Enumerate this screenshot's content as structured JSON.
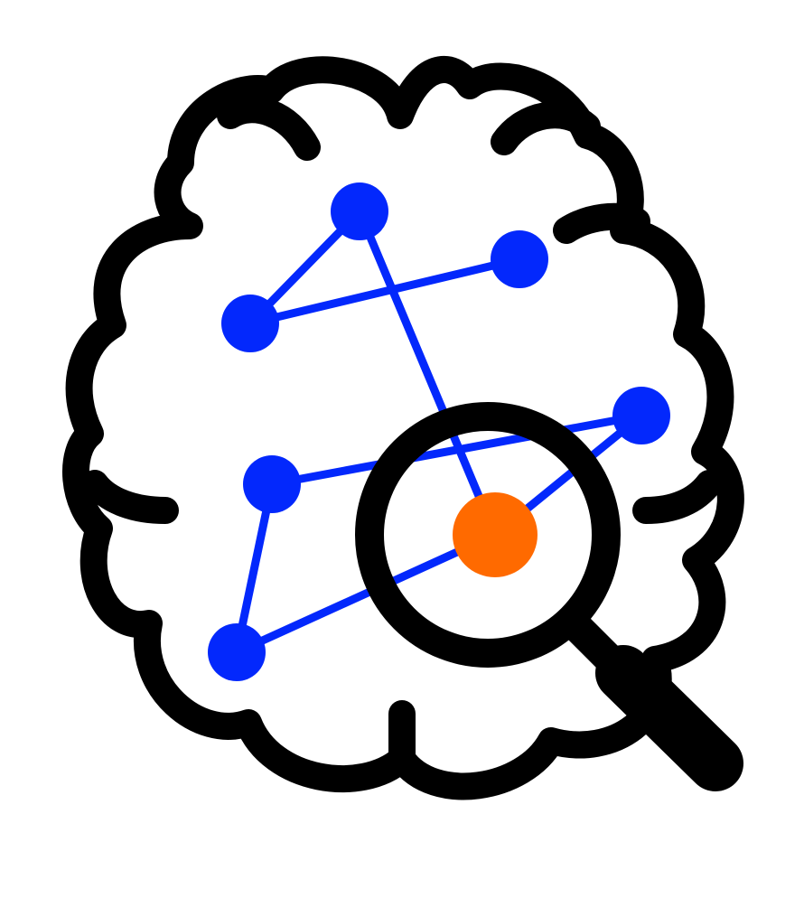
{
  "icons": {
    "main": "brain-network-magnifier-icon",
    "brain": "brain-outline-icon",
    "network": "network-graph-icon",
    "magnifier": "magnifying-glass-icon",
    "focus": "highlighted-node-icon"
  },
  "colors": {
    "background": "#ffffff",
    "outline": "#000000",
    "network": "#0328fc",
    "highlight": "#ff6a00"
  }
}
